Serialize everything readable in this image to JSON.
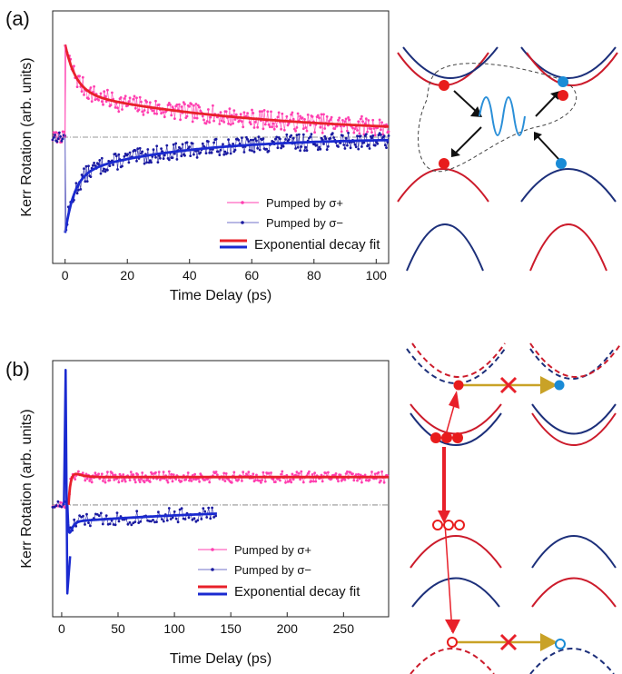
{
  "panels": [
    {
      "label": "(a)",
      "chart_data": {
        "type": "line",
        "xlabel": "Time Delay (ps)",
        "ylabel": "Kerr Rotation (arb. units)",
        "xlim": [
          -4,
          104
        ],
        "ylim": [
          -1.2,
          1.2
        ],
        "xticks": [
          0,
          20,
          40,
          60,
          80,
          100
        ],
        "y_tick_labels": false,
        "baseline": 0,
        "series": [
          {
            "name": "Pumped by σ+",
            "style": "points",
            "color": "#ff3fb0",
            "model": {
              "t0": 0,
              "A1": 0.45,
              "tau1": 3.5,
              "A2": 0.4,
              "tau2": 60,
              "c": 0.03,
              "noise": 0.09,
              "seed": 7
            }
          },
          {
            "name": "Pumped by σ−",
            "style": "points",
            "color": "#1a1aa0",
            "model": {
              "t0": 0,
              "A1": -0.55,
              "tau1": 3.0,
              "A2": -0.35,
              "tau2": 35,
              "c": -0.01,
              "noise": 0.08,
              "seed": 13
            }
          },
          {
            "name": "Exponential decay fit",
            "style": "fit",
            "color": "#e8202a",
            "model": {
              "t0": 0,
              "A1": 0.45,
              "tau1": 3.5,
              "A2": 0.4,
              "tau2": 60,
              "c": 0.03
            }
          },
          {
            "name": "",
            "style": "fit",
            "color": "#1a2ad0",
            "model": {
              "t0": 0,
              "A1": -0.55,
              "tau1": 3.0,
              "A2": -0.35,
              "tau2": 35,
              "c": -0.01
            }
          }
        ],
        "legend": [
          "Pumped by σ+",
          "Pumped by σ−",
          "Exponential decay fit"
        ],
        "legend_position": "bottom-right"
      }
    },
    {
      "label": "(b)",
      "chart_data": {
        "type": "line",
        "xlabel": "Time Delay (ps)",
        "ylabel": "Kerr Rotation (arb. units)",
        "xlim": [
          -8,
          290
        ],
        "ylim": [
          -1.2,
          1.55
        ],
        "xticks": [
          0,
          50,
          100,
          150,
          200,
          250
        ],
        "y_tick_labels": false,
        "baseline": 0,
        "series": [
          {
            "name": "Pumped by σ+",
            "style": "points",
            "color": "#ff3fb0",
            "xmax": 290,
            "model": {
              "t0": 6,
              "A1": 0.28,
              "tau1": 5,
              "A2": 0,
              "tau2": 1,
              "c": 0.3,
              "rise": 3,
              "noise": 0.06,
              "seed": 21
            }
          },
          {
            "name": "Pumped by σ−",
            "style": "points",
            "color": "#1a1aa0",
            "xmax": 138,
            "model": {
              "t0": 5,
              "A1": -0.5,
              "tau1": 2.5,
              "A2": -0.18,
              "tau2": 200,
              "c": 0.0,
              "rise": 1.5,
              "noise": 0.08,
              "seed": 33
            }
          },
          {
            "name": "Exponential decay fit",
            "style": "fit",
            "color": "#e8202a",
            "xmax": 290,
            "model": {
              "t0": 6,
              "A1": 0.28,
              "tau1": 5,
              "A2": 0,
              "tau2": 1,
              "c": 0.3,
              "rise": 3
            }
          },
          {
            "name": "",
            "style": "fit",
            "color": "#1a2ad0",
            "xmax": 138,
            "model": {
              "t0": 5,
              "A1": -0.5,
              "tau1": 2.5,
              "A2": -0.18,
              "tau2": 200,
              "c": 0.0,
              "rise": 1.5
            }
          }
        ],
        "spike": {
          "x": 3.5,
          "peak": 1.45,
          "trough": -0.95,
          "color": "#1a2ad0"
        },
        "legend": [
          "Pumped by σ+",
          "Pumped by σ−",
          "Exponential decay fit"
        ],
        "legend_position": "bottom-right"
      }
    }
  ],
  "colors": {
    "red_band": "#cc1b2b",
    "blue_band": "#1c2f7a",
    "electron_red": "#e81c1c",
    "electron_blue": "#1a8bd6",
    "arrow_gold": "#c9a227",
    "wave_blue": "#2a8fd8"
  }
}
